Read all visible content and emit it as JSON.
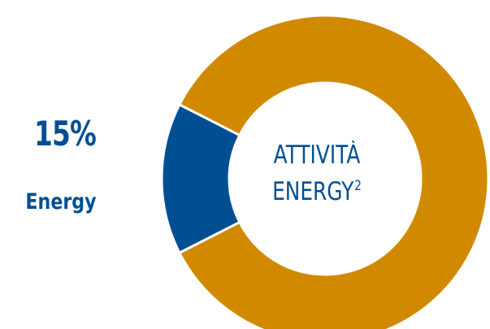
{
  "colors": {
    "energy": "#004f93",
    "other": "#d18a00",
    "separator": "#ffffff"
  },
  "chart_data": {
    "type": "pie",
    "style": "donut",
    "slices": [
      {
        "label": "Energy",
        "value": 15,
        "color": "#004f93"
      },
      {
        "value": 85,
        "color": "#d18a00"
      }
    ],
    "highlight": {
      "percent_text": "15%",
      "name_text": "Energy"
    },
    "center_label": {
      "line1": "ATTIVITÀ",
      "line2": "ENERGY",
      "superscript": "2"
    }
  }
}
